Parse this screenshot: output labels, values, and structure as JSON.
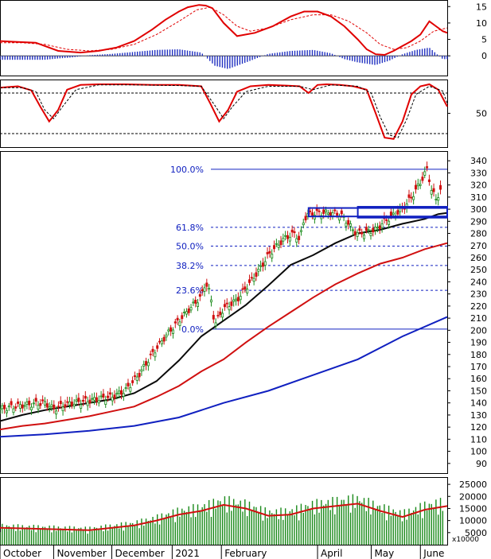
{
  "chart_data": [
    {
      "type": "line",
      "panel": "macd",
      "y_ticks": [
        15,
        10,
        5,
        0
      ],
      "ylim": [
        -6,
        17
      ],
      "series": [
        {
          "color": "#e00000",
          "style": "solid",
          "x": [
            0,
            0.03,
            0.08,
            0.13,
            0.18,
            0.22,
            0.26,
            0.3,
            0.34,
            0.37,
            0.4,
            0.42,
            0.445,
            0.46,
            0.475,
            0.5,
            0.53,
            0.57,
            0.61,
            0.65,
            0.68,
            0.71,
            0.74,
            0.77,
            0.8,
            0.82,
            0.84,
            0.86,
            0.88,
            0.9,
            0.92,
            0.94,
            0.96,
            0.975,
            0.99,
            1.0
          ],
          "y": [
            4.5,
            4.3,
            4.0,
            1.5,
            1.0,
            1.5,
            2.5,
            4.5,
            8.0,
            11.0,
            13.5,
            14.8,
            15.5,
            15.3,
            14.5,
            10.0,
            6.0,
            7.0,
            9.0,
            12.0,
            13.5,
            13.5,
            12.0,
            9.0,
            5.0,
            2.0,
            0.5,
            0.3,
            1.5,
            3.0,
            4.5,
            6.5,
            10.5,
            9.0,
            7.5,
            7.0
          ]
        },
        {
          "color": "#e00000",
          "style": "dashed",
          "x": [
            0,
            0.05,
            0.1,
            0.15,
            0.2,
            0.25,
            0.3,
            0.35,
            0.4,
            0.44,
            0.47,
            0.5,
            0.53,
            0.56,
            0.6,
            0.65,
            0.7,
            0.74,
            0.78,
            0.82,
            0.85,
            0.88,
            0.91,
            0.94,
            0.97,
            1.0
          ],
          "y": [
            4.0,
            4.0,
            3.5,
            2.0,
            1.5,
            2.0,
            3.5,
            6.5,
            10.5,
            14.0,
            14.8,
            12.5,
            9.0,
            7.5,
            8.5,
            11.0,
            12.5,
            12.5,
            10.5,
            7.0,
            3.5,
            2.0,
            2.5,
            4.5,
            7.5,
            8.5
          ]
        }
      ],
      "histogram": {
        "color": "#2030c0",
        "x": [
          0.1,
          0.13,
          0.16,
          0.2,
          0.25,
          0.3,
          0.35,
          0.4,
          0.45,
          0.48,
          0.51,
          0.55,
          0.6,
          0.65,
          0.7,
          0.74,
          0.77,
          0.8,
          0.84,
          0.87,
          0.9,
          0.93,
          0.96,
          0.99
        ],
        "y": [
          -1.2,
          -0.8,
          -0.5,
          0.2,
          0.6,
          1.2,
          1.8,
          2.0,
          1.0,
          -3.0,
          -4.0,
          -2.0,
          0.6,
          1.5,
          1.8,
          0.8,
          -1.0,
          -2.0,
          -2.8,
          -1.5,
          0.5,
          1.8,
          2.5,
          -1.0
        ]
      }
    },
    {
      "type": "line",
      "panel": "stochastic",
      "y_ticks": [
        50
      ],
      "ylim": [
        0,
        100
      ],
      "reference_lines": [
        80,
        20
      ],
      "series": [
        {
          "color": "#e00000",
          "style": "solid",
          "x": [
            0,
            0.04,
            0.07,
            0.09,
            0.11,
            0.13,
            0.15,
            0.18,
            0.22,
            0.28,
            0.34,
            0.4,
            0.45,
            0.47,
            0.49,
            0.51,
            0.53,
            0.56,
            0.6,
            0.64,
            0.67,
            0.69,
            0.71,
            0.73,
            0.76,
            0.79,
            0.82,
            0.84,
            0.86,
            0.88,
            0.9,
            0.92,
            0.94,
            0.96,
            0.98,
            1.0
          ],
          "y": [
            88,
            90,
            84,
            60,
            38,
            55,
            85,
            92,
            93,
            93,
            92,
            92,
            90,
            65,
            38,
            55,
            82,
            90,
            92,
            91,
            90,
            80,
            92,
            93,
            92,
            90,
            85,
            50,
            14,
            12,
            38,
            78,
            90,
            93,
            85,
            60
          ]
        },
        {
          "color": "#000000",
          "style": "dashed",
          "x": [
            0,
            0.05,
            0.08,
            0.1,
            0.12,
            0.14,
            0.17,
            0.22,
            0.3,
            0.4,
            0.45,
            0.48,
            0.5,
            0.52,
            0.55,
            0.6,
            0.67,
            0.7,
            0.74,
            0.8,
            0.83,
            0.85,
            0.87,
            0.89,
            0.91,
            0.93,
            0.96,
            0.99,
            1.0
          ],
          "y": [
            88,
            88,
            82,
            55,
            42,
            60,
            85,
            92,
            92,
            91,
            90,
            62,
            42,
            60,
            82,
            90,
            90,
            85,
            92,
            90,
            80,
            45,
            18,
            14,
            42,
            78,
            90,
            83,
            65
          ]
        }
      ]
    },
    {
      "type": "line",
      "panel": "price",
      "y_ticks": [
        340,
        330,
        320,
        310,
        300,
        290,
        280,
        270,
        260,
        250,
        240,
        230,
        220,
        210,
        200,
        190,
        180,
        170,
        160,
        150,
        140,
        130,
        120,
        110,
        100,
        90
      ],
      "ylim": [
        82,
        348
      ],
      "fibonacci": [
        {
          "label": "100.0%",
          "value": 333
        },
        {
          "label": "61.8%",
          "value": 285
        },
        {
          "label": "50.0%",
          "value": 269.5
        },
        {
          "label": "38.2%",
          "value": 253.5
        },
        {
          "label": "23.6%",
          "value": 233
        },
        {
          "label": "0.0%",
          "value": 201
        }
      ],
      "series": [
        {
          "color": "#0a0a0a",
          "width": 2,
          "x": [
            0,
            0.05,
            0.1,
            0.15,
            0.2,
            0.25,
            0.3,
            0.35,
            0.4,
            0.45,
            0.5,
            0.55,
            0.6,
            0.65,
            0.7,
            0.75,
            0.8,
            0.85,
            0.9,
            0.95,
            0.98,
            1.0
          ],
          "y": [
            125,
            130,
            134,
            137,
            140,
            143,
            148,
            158,
            175,
            195,
            208,
            221,
            237,
            254,
            262,
            272,
            280,
            283,
            288,
            292,
            296,
            297
          ]
        },
        {
          "color": "#d01010",
          "width": 2,
          "x": [
            0,
            0.05,
            0.1,
            0.15,
            0.2,
            0.25,
            0.3,
            0.35,
            0.4,
            0.45,
            0.5,
            0.55,
            0.6,
            0.65,
            0.7,
            0.75,
            0.8,
            0.85,
            0.9,
            0.95,
            1.0
          ],
          "y": [
            118,
            121,
            123,
            126,
            129,
            133,
            137,
            145,
            154,
            166,
            176,
            190,
            203,
            215,
            227,
            238,
            247,
            255,
            260,
            267,
            272
          ]
        },
        {
          "color": "#1020c0",
          "width": 2,
          "x": [
            0,
            0.1,
            0.2,
            0.3,
            0.4,
            0.5,
            0.6,
            0.7,
            0.8,
            0.9,
            1.0
          ],
          "y": [
            112,
            114,
            117,
            121,
            128,
            140,
            150,
            163,
            176,
            195,
            211
          ]
        }
      ],
      "annotations": [
        {
          "type": "rectangle",
          "color": "#1020c0",
          "x0": 0.69,
          "x1": 1.0,
          "y0": 294,
          "y1": 301
        },
        {
          "type": "rectangle",
          "color": "#1020c0",
          "x0": 0.8,
          "x1": 1.0,
          "y0": 293,
          "y1": 302
        }
      ]
    },
    {
      "type": "bar",
      "panel": "volume",
      "y_ticks": [
        25000,
        20000,
        15000,
        10000,
        5000
      ],
      "ylim": [
        0,
        28000
      ],
      "unit_label": "x10000",
      "bar_color": "#1a8a1a",
      "ma_color": "#d01010",
      "ma": {
        "x": [
          0,
          0.1,
          0.2,
          0.3,
          0.35,
          0.4,
          0.45,
          0.5,
          0.55,
          0.6,
          0.65,
          0.7,
          0.75,
          0.8,
          0.85,
          0.9,
          0.95,
          1.0
        ],
        "y": [
          7000,
          6500,
          6000,
          8000,
          10000,
          12500,
          14000,
          16500,
          15000,
          12000,
          12500,
          15000,
          16000,
          17000,
          14000,
          11500,
          14500,
          16000
        ]
      }
    }
  ],
  "x_axis": {
    "months": [
      "October",
      "November",
      "December",
      "2021",
      "February",
      "April",
      "May",
      "June"
    ]
  }
}
